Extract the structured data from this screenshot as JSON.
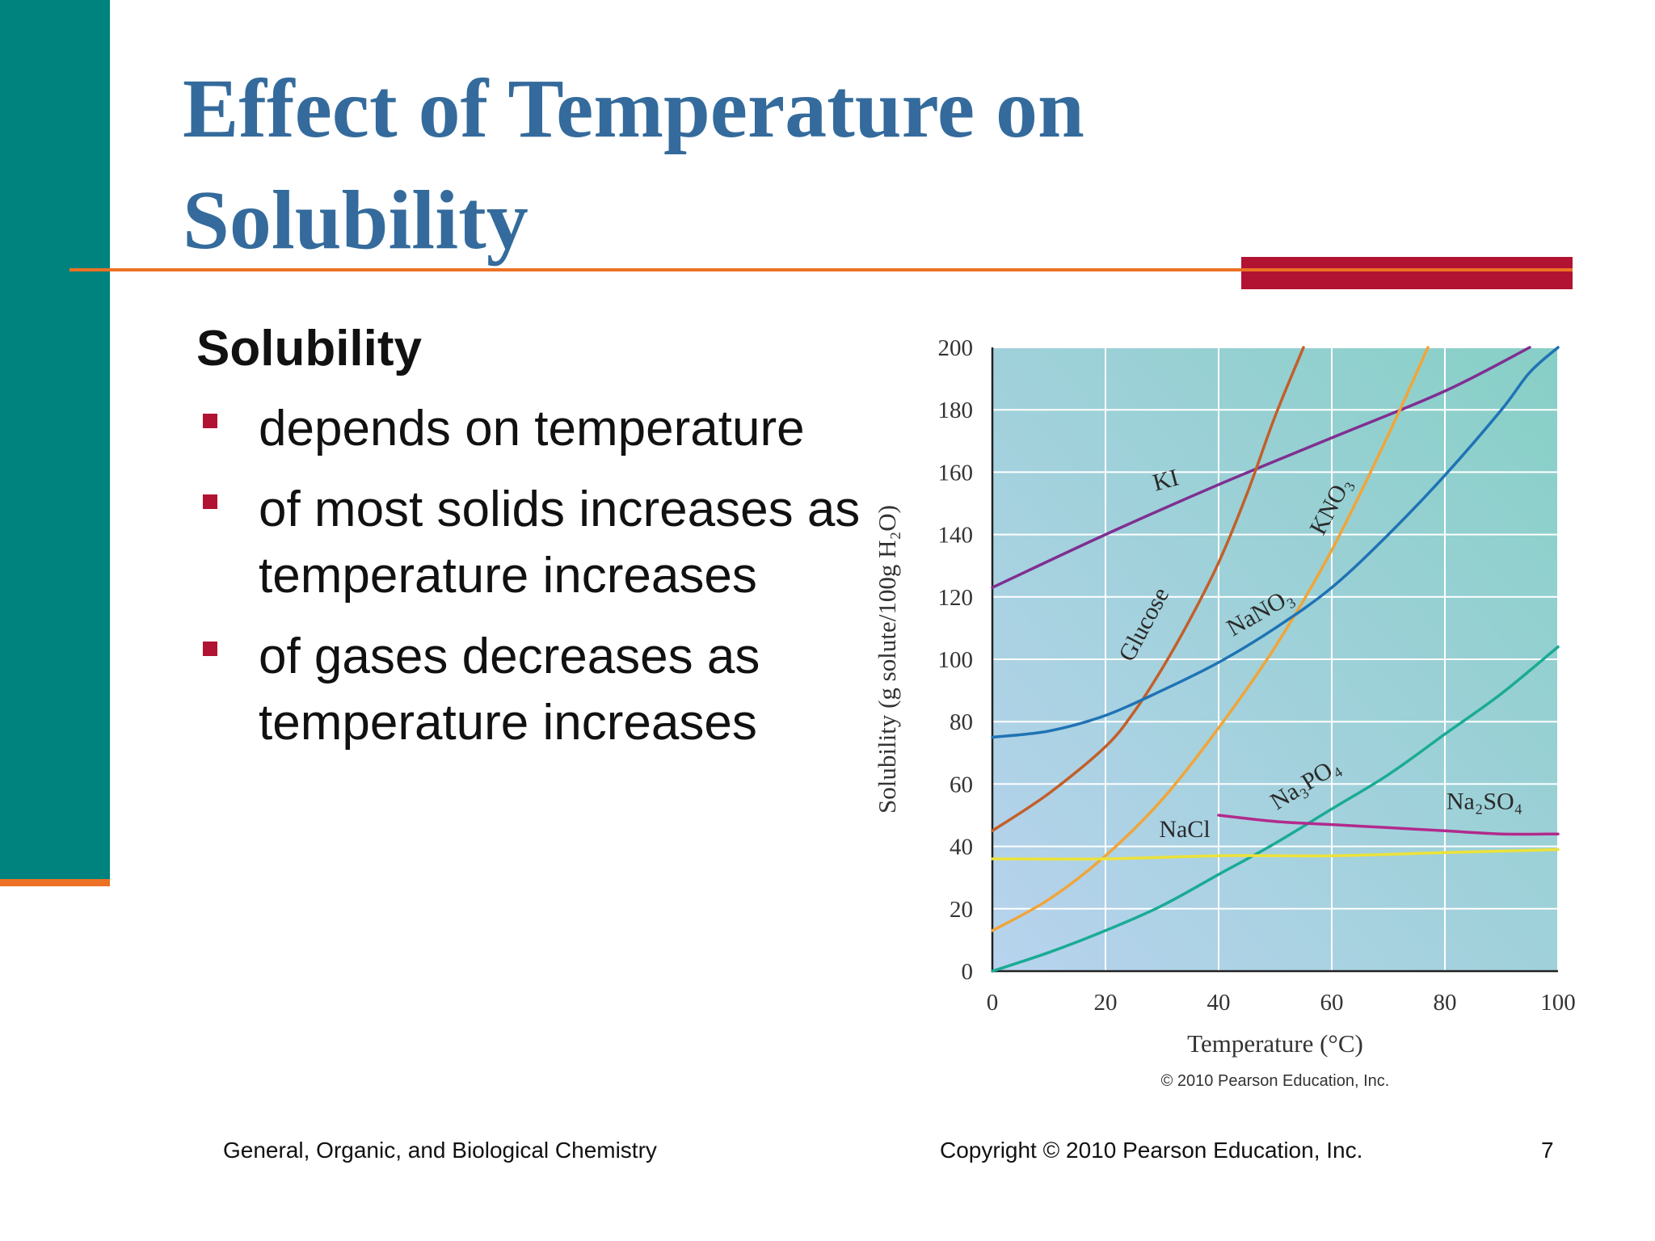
{
  "slide": {
    "title": "Effect of Temperature on Solubility",
    "subheading": "Solubility",
    "bullets": [
      "depends on temperature",
      "of most solids increases as temperature increases",
      "of gases decreases as temperature increases"
    ],
    "footer_left": "General, Organic, and Biological Chemistry",
    "footer_center": "Copyright © 2010 Pearson Education, Inc.",
    "page_number": "7",
    "colors": {
      "title": "#346b9c",
      "sidebar": "#00827f",
      "accent_red": "#b21333",
      "accent_orange": "#ec7124"
    }
  },
  "chart_data": {
    "type": "line",
    "title": "",
    "xlabel": "Temperature (°C)",
    "ylabel": "Solubility (g solute/100g H₂O)",
    "xlim": [
      0,
      100
    ],
    "ylim": [
      0,
      200
    ],
    "xticks": [
      0,
      20,
      40,
      60,
      80,
      100
    ],
    "yticks": [
      0,
      20,
      40,
      60,
      80,
      100,
      120,
      140,
      160,
      180,
      200
    ],
    "grid": true,
    "credit": "© 2010 Pearson Education, Inc.",
    "series": [
      {
        "name": "KI",
        "color": "#7f2f91",
        "x": [
          0,
          20,
          40,
          60,
          80,
          95
        ],
        "y": [
          123,
          140,
          156,
          171,
          186,
          200
        ]
      },
      {
        "name": "Glucose",
        "color": "#c25f2a",
        "x": [
          0,
          10,
          20,
          25,
          30,
          35,
          40,
          45,
          50,
          55
        ],
        "y": [
          45,
          57,
          72,
          83,
          97,
          113,
          131,
          153,
          178,
          200
        ]
      },
      {
        "name": "KNO₃",
        "color": "#f0a53a",
        "x": [
          0,
          10,
          20,
          30,
          40,
          50,
          60,
          70,
          77
        ],
        "y": [
          13,
          23,
          37,
          55,
          78,
          104,
          135,
          172,
          200
        ]
      },
      {
        "name": "NaNO₃",
        "color": "#1f73b4",
        "x": [
          0,
          10,
          20,
          30,
          40,
          50,
          60,
          70,
          80,
          90,
          95,
          100
        ],
        "y": [
          75,
          77,
          82,
          90,
          99,
          110,
          123,
          140,
          159,
          180,
          192,
          200
        ]
      },
      {
        "name": "Na₃PO₄",
        "color": "#1aab95",
        "x": [
          0,
          10,
          20,
          30,
          40,
          50,
          60,
          70,
          80,
          90,
          100
        ],
        "y": [
          0,
          6,
          13,
          21,
          31,
          41,
          52,
          63,
          76,
          89,
          104
        ]
      },
      {
        "name": "Na₂SO₄",
        "color": "#b22a8c",
        "x": [
          40,
          50,
          60,
          70,
          80,
          90,
          100
        ],
        "y": [
          50,
          48,
          47,
          46,
          45,
          44,
          44
        ]
      },
      {
        "name": "NaCl",
        "color": "#ece23a",
        "x": [
          0,
          20,
          40,
          60,
          80,
          100
        ],
        "y": [
          36,
          36,
          37,
          37,
          38,
          39
        ]
      }
    ],
    "series_labels": [
      {
        "text": "KI",
        "x": 31,
        "y": 155,
        "rotate": -15
      },
      {
        "text": "Glucose",
        "x": 28,
        "y": 110,
        "rotate": -62
      },
      {
        "text": "NaNO₃",
        "x": 48,
        "y": 113,
        "rotate": -30
      },
      {
        "text": "KNO₃",
        "x": 61,
        "y": 148,
        "rotate": -62
      },
      {
        "text": "Na₃PO₄",
        "x": 56,
        "y": 58,
        "rotate": -32
      },
      {
        "text": "Na₂SO₄",
        "x": 87,
        "y": 52,
        "rotate": 0
      },
      {
        "text": "NaCl",
        "x": 34,
        "y": 43,
        "rotate": 0
      }
    ]
  }
}
